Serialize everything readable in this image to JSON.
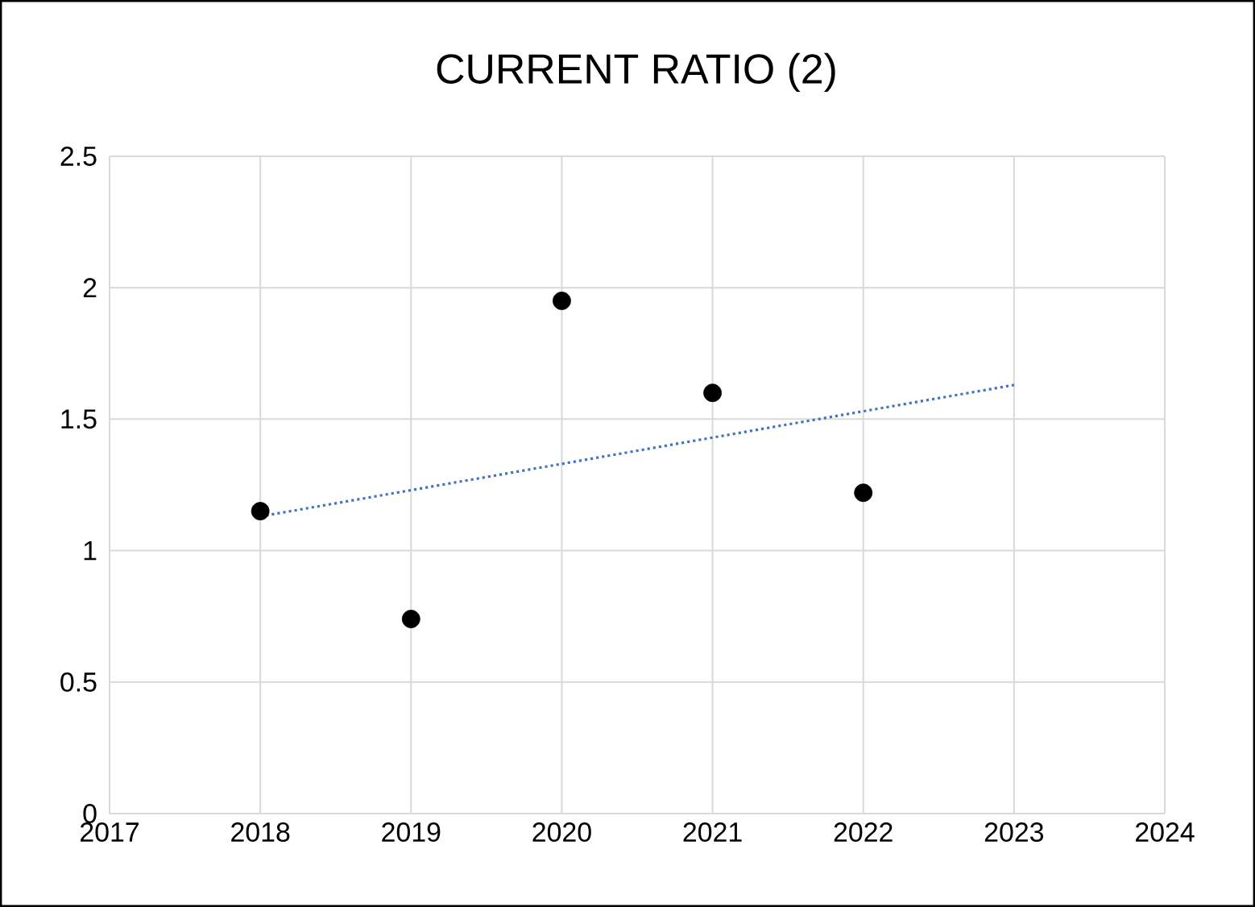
{
  "chart_data": {
    "type": "scatter",
    "title": "CURRENT RATIO (2)",
    "xlim": [
      2017,
      2024
    ],
    "xticks": [
      2017,
      2018,
      2019,
      2020,
      2021,
      2022,
      2023,
      2024
    ],
    "ylim": [
      0,
      2.5
    ],
    "yticks": [
      0,
      0.5,
      1,
      1.5,
      2,
      2.5
    ],
    "grid": true,
    "series": [
      {
        "x": [
          2018,
          2019,
          2020,
          2021,
          2022
        ],
        "values": [
          1.15,
          0.74,
          1.95,
          1.6,
          1.22
        ],
        "color": "#000000",
        "marker": "circle"
      },
      {
        "type": "line",
        "x": [
          2018,
          2023
        ],
        "values": [
          1.13,
          1.63
        ],
        "color": "#4472c4",
        "line_style": "dotted",
        "marker": "none"
      }
    ]
  }
}
